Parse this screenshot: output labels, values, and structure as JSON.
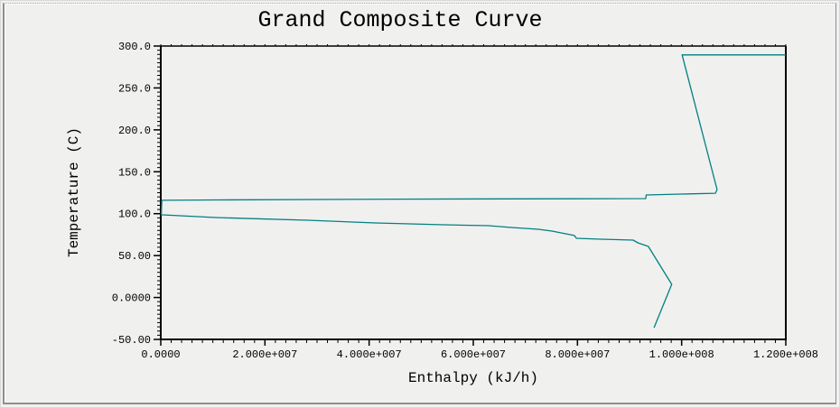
{
  "window": {
    "title": "Grand Composite Curve"
  },
  "chart_data": {
    "type": "line",
    "title": "Grand Composite Curve",
    "xlabel": "Enthalpy (kJ/h)",
    "ylabel": "Temperature (C)",
    "xlim": [
      0,
      120000000
    ],
    "ylim": [
      -50,
      300
    ],
    "grid": false,
    "legend": false,
    "axis_color": "#000000",
    "x_minor_step": 2000000,
    "y_minor_step": 5,
    "x_ticks": [
      {
        "value": 0,
        "label": "0.0000"
      },
      {
        "value": 20000000,
        "label": "2.000e+007"
      },
      {
        "value": 40000000,
        "label": "4.000e+007"
      },
      {
        "value": 60000000,
        "label": "6.000e+007"
      },
      {
        "value": 80000000,
        "label": "8.000e+007"
      },
      {
        "value": 100000000,
        "label": "1.000e+008"
      },
      {
        "value": 120000000,
        "label": "1.200e+008"
      }
    ],
    "y_ticks": [
      {
        "value": 300,
        "label": "300.0"
      },
      {
        "value": 250,
        "label": "250.0"
      },
      {
        "value": 200,
        "label": "200.0"
      },
      {
        "value": 150,
        "label": "150.0"
      },
      {
        "value": 100,
        "label": "100.0"
      },
      {
        "value": 50,
        "label": "50.00"
      },
      {
        "value": 0,
        "label": "0.0000"
      },
      {
        "value": -50,
        "label": "-50.00"
      }
    ],
    "series": [
      {
        "name": "grand-composite-curve",
        "color": "#008080",
        "points": [
          [
            120000000,
            289.5
          ],
          [
            100100000,
            289.5
          ],
          [
            106800000,
            128.8
          ],
          [
            106500000,
            124.4
          ],
          [
            99900000,
            123.4
          ],
          [
            93200000,
            122.3
          ],
          [
            93100000,
            118.0
          ],
          [
            46100000,
            117.4
          ],
          [
            10600000,
            116.4
          ],
          [
            200000,
            115.9
          ],
          [
            100000,
            98.9
          ],
          [
            300000,
            98.6
          ],
          [
            10600000,
            95.4
          ],
          [
            28300000,
            92.2
          ],
          [
            41300000,
            88.9
          ],
          [
            54300000,
            86.8
          ],
          [
            62900000,
            85.7
          ],
          [
            67300000,
            83.5
          ],
          [
            72500000,
            81.4
          ],
          [
            75100000,
            79.2
          ],
          [
            79400000,
            73.9
          ],
          [
            79800000,
            70.6
          ],
          [
            84600000,
            69.5
          ],
          [
            90700000,
            68.5
          ],
          [
            91600000,
            65.2
          ],
          [
            93600000,
            60.9
          ],
          [
            98100000,
            15.7
          ],
          [
            94700000,
            -36.0
          ]
        ]
      }
    ]
  }
}
